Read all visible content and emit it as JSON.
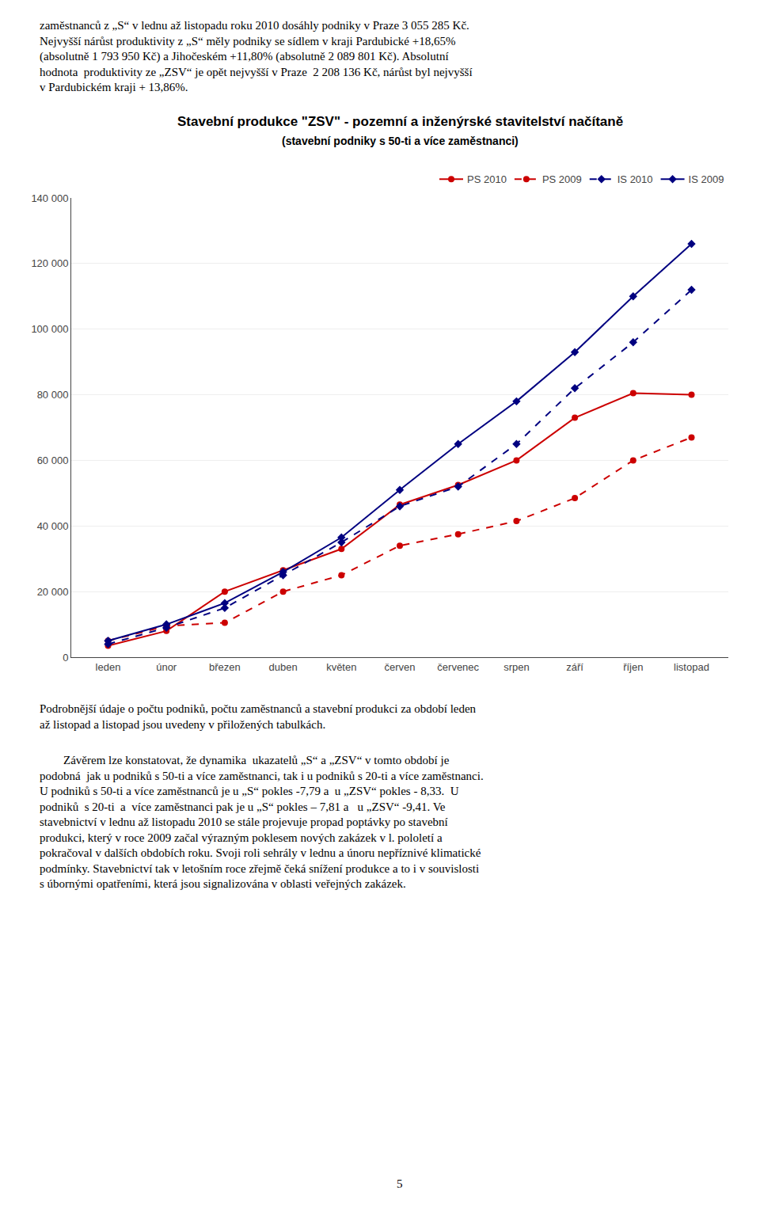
{
  "chart_data": {
    "type": "line",
    "title": "Stavební produkce \"ZSV\" - pozemní a inženýrské stavitelství načítaně",
    "subtitle": "(stavební podniky s 50-ti a více zaměstnanci)",
    "categories": [
      "leden",
      "únor",
      "březen",
      "duben",
      "květen",
      "červen",
      "červenec",
      "srpen",
      "září",
      "říjen",
      "listopad"
    ],
    "series": [
      {
        "name": "PS 2010",
        "color": "#CC0000",
        "line_style": "solid",
        "marker": "circle",
        "values": [
          3500,
          8000,
          20000,
          26500,
          33000,
          46500,
          52500,
          60000,
          73000,
          80500,
          80000
        ]
      },
      {
        "name": "PS 2009",
        "color": "#CC0000",
        "line_style": "dashed",
        "marker": "circle",
        "values": [
          5000,
          9500,
          10500,
          20000,
          25000,
          34000,
          37500,
          41500,
          48500,
          60000,
          67000
        ]
      },
      {
        "name": "IS 2010",
        "color": "#000080",
        "line_style": "dashed",
        "marker": "diamond",
        "values": [
          4000,
          9000,
          15000,
          25000,
          35000,
          46000,
          52000,
          65000,
          82000,
          96000,
          112000
        ]
      },
      {
        "name": "IS 2009",
        "color": "#000080",
        "line_style": "solid",
        "marker": "diamond",
        "values": [
          5000,
          10000,
          16500,
          26000,
          36500,
          51000,
          65000,
          78000,
          93000,
          110000,
          126000
        ]
      }
    ],
    "ylim": [
      0,
      140000
    ],
    "yticks": [
      0,
      {
        "value": 20000,
        "label": "20 000"
      },
      {
        "value": 40000,
        "label": "40 000"
      },
      {
        "value": 60000,
        "label": "60 000"
      },
      {
        "value": 80000,
        "label": "80 000"
      },
      {
        "value": 100000,
        "label": "100 000"
      },
      {
        "value": 120000,
        "label": "120 000"
      },
      {
        "value": 140000,
        "label": "140 000"
      }
    ],
    "grid": true,
    "legend": "upper right",
    "annotations": [
      "zaměstnanců z „S“ v lednu až listopadu roku 2010 dosáhly podniky v Praze 3 055 285 Kč.\nNejvyšší nárůst produktivity z „S“ měly podniky se sídlem v kraji Pardubické +18,65%\n(absolutně 1 793 950 Kč) a Jihočeském +11,80% (absolutně 2 089 801 Kč). Absolutní\nhodnota  produktivity ze „ZSV“ je opět nejvyšší v Praze  2 208 136 Kč, nárůst byl nejvyšší\nv Pardubickém kraji + 13,86%.",
      "Podrobnější údaje o počtu podniků, počtu zaměstnanců a stavební produkci za období leden\naž listopad a listopad jsou uvedeny v přiložených tabulkách.",
      "        Závěrem lze konstatovat, že dynamika  ukazatelů „S“ a „ZSV“ v tomto období je\npodobná  jak u podniků s 50-ti a více zaměstnanci, tak i u podniků s 20-ti a více zaměstnanci.\nU podniků s 50-ti a více zaměstnanců je u „S“ pokles -7,79 a  u „ZSV“ pokles - 8,33.  U\npodniků  s 20-ti  a  více zaměstnanci pak je u „S“ pokles – 7,81 a   u „ZSV“ -9,41. Ve\nstavebnictví v lednu až listopadu 2010 se stále projevuje propad poptávky po stavební\nprodukci, který v roce 2009 začal výrazným poklesem nových zakázek v l. pololetí a\npokračoval v dalších obdobích roku. Svoji roli sehrály v lednu a únoru nepříznivé klimatické\npodmínky. Stavebnictví tak v letošním roce zřejmě čeká snížení produkce a to i v souvislosti\ns úbornými opatřeními, která jsou signalizována v oblasti veřejných zakázek.",
      "5"
    ]
  }
}
